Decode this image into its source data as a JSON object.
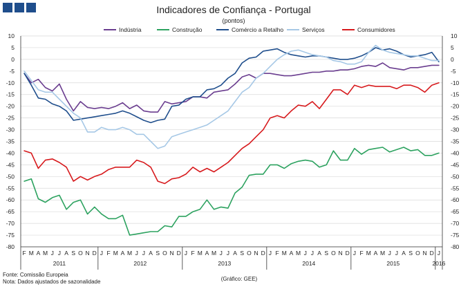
{
  "chart_data": {
    "type": "line",
    "title": "Indicadores de Confiança - Portugal",
    "subtitle": "(pontos)",
    "ylim": [
      -80,
      10
    ],
    "yticks": [
      10,
      5,
      0,
      -5,
      -10,
      -15,
      -20,
      -25,
      -30,
      -35,
      -40,
      -45,
      -50,
      -55,
      -60,
      -65,
      -70,
      -75,
      -80
    ],
    "grid": true,
    "legend_position": "top",
    "x_months": [
      "F",
      "M",
      "A",
      "M",
      "J",
      "J",
      "A",
      "S",
      "O",
      "N",
      "D",
      "J",
      "F",
      "M",
      "A",
      "M",
      "J",
      "J",
      "A",
      "S",
      "O",
      "N",
      "D",
      "J",
      "F",
      "M",
      "A",
      "M",
      "J",
      "J",
      "A",
      "S",
      "O",
      "N",
      "D",
      "J",
      "F",
      "M",
      "A",
      "M",
      "J",
      "J",
      "A",
      "S",
      "O",
      "N",
      "D",
      "J",
      "F",
      "M",
      "A",
      "M",
      "J",
      "J",
      "A",
      "S",
      "O",
      "N",
      "D",
      "J"
    ],
    "x_years": [
      {
        "label": "2011",
        "start": 0,
        "end": 10
      },
      {
        "label": "2012",
        "start": 11,
        "end": 22
      },
      {
        "label": "2013",
        "start": 23,
        "end": 34
      },
      {
        "label": "2014",
        "start": 35,
        "end": 46
      },
      {
        "label": "2015",
        "start": 47,
        "end": 58
      },
      {
        "label": "2016",
        "start": 59,
        "end": 59
      }
    ],
    "series": [
      {
        "name": "Indústria",
        "color": "#6a3d8f",
        "values": [
          -6,
          -10,
          -8.5,
          -12,
          -13.5,
          -10.5,
          -17,
          -22,
          -18,
          -20.5,
          -21,
          -20.5,
          -21,
          -20,
          -18.5,
          -21,
          -19.5,
          -22,
          -22.5,
          -22.5,
          -18,
          -19,
          -18.5,
          -18,
          -16,
          -16,
          -16.5,
          -14,
          -13.5,
          -13,
          -10.5,
          -7.5,
          -6.5,
          -8,
          -6,
          -6,
          -6.5,
          -7,
          -7,
          -6.5,
          -6,
          -5.5,
          -5.5,
          -5,
          -5,
          -4.5,
          -4.5,
          -4,
          -3,
          -2.5,
          -3,
          -1.5,
          -3.5,
          -4,
          -4.5,
          -3.5,
          -3.5,
          -3,
          -2.5,
          -2.5
        ]
      },
      {
        "name": "Construção",
        "color": "#2ca25f",
        "values": [
          -52,
          -51,
          -59.5,
          -61,
          -59,
          -58,
          -64,
          -61,
          -60,
          -66,
          -63,
          -66,
          -68,
          -68,
          -66.5,
          -75,
          -74.5,
          -74,
          -73.5,
          -73.5,
          -71,
          -71.5,
          -67,
          -67,
          -65,
          -64,
          -60,
          -64,
          -63,
          -63.5,
          -57,
          -54.5,
          -49.5,
          -49,
          -49,
          -45,
          -45,
          -46.5,
          -44.5,
          -43.5,
          -43,
          -43.5,
          -46,
          -45,
          -39,
          -43,
          -43,
          -38,
          -40.5,
          -38.5,
          -38,
          -37.5,
          -39.5,
          -38.5,
          -37.5,
          -39,
          -38.5,
          -41,
          -41,
          -40
        ]
      },
      {
        "name": "Comércio a Retalho",
        "color": "#1f4e8c",
        "values": [
          -6,
          -11,
          -16.5,
          -17,
          -19,
          -20,
          -22,
          -26,
          -25.5,
          -25,
          -24.5,
          -24,
          -23.5,
          -23,
          -22,
          -23,
          -24.5,
          -26,
          -27,
          -26,
          -25.5,
          -20,
          -19.5,
          -17,
          -16,
          -16,
          -13,
          -12.5,
          -11,
          -8,
          -6,
          -1.5,
          0.5,
          1,
          3.5,
          4,
          4.5,
          3,
          2,
          1.5,
          1,
          1.5,
          1.5,
          1,
          0.5,
          0,
          0,
          0.5,
          1.5,
          3,
          5,
          4,
          4.5,
          3.5,
          2,
          1,
          1.5,
          2,
          3,
          -1
        ]
      },
      {
        "name": "Serviços",
        "color": "#a6c8e6",
        "values": [
          -5,
          -9,
          -13,
          -14,
          -14,
          -17,
          -20,
          -23,
          -25,
          -31,
          -31,
          -29,
          -30,
          -30,
          -29,
          -30,
          -32,
          -32,
          -35,
          -38,
          -37,
          -33,
          -32,
          -31,
          -30,
          -29,
          -28,
          -26,
          -24,
          -22,
          -18,
          -14,
          -12,
          -8,
          -6,
          -3,
          0,
          2,
          3.5,
          4,
          3,
          2,
          1.5,
          1,
          -0.5,
          -1,
          -2,
          -2,
          -1,
          3,
          6,
          4,
          3,
          2.5,
          2,
          1.5,
          1.5,
          0.5,
          -0.5,
          -0.5
        ]
      },
      {
        "name": "Consumidores",
        "color": "#d7191c",
        "values": [
          -39,
          -40,
          -46.5,
          -43,
          -42.5,
          -44,
          -46,
          -52,
          -50,
          -51.5,
          -50,
          -49,
          -47,
          -46,
          -46,
          -46,
          -43,
          -44,
          -46,
          -52,
          -53,
          -51,
          -50.5,
          -49,
          -46,
          -48,
          -46.5,
          -48,
          -46,
          -44,
          -41,
          -38,
          -36,
          -33,
          -30,
          -25,
          -24,
          -25,
          -22,
          -19.5,
          -20,
          -18,
          -21,
          -17,
          -13,
          -13,
          -15,
          -11,
          -12,
          -11,
          -11.5,
          -11.5,
          -11.5,
          -12.5,
          -11,
          -11,
          -12,
          -14,
          -11,
          -10
        ]
      }
    ]
  },
  "footer": {
    "source": "Fonte: Comissão Europeia",
    "note": "Nota: Dados ajustados de sazonalidade",
    "credit": "(Gráfico: GEE)"
  }
}
